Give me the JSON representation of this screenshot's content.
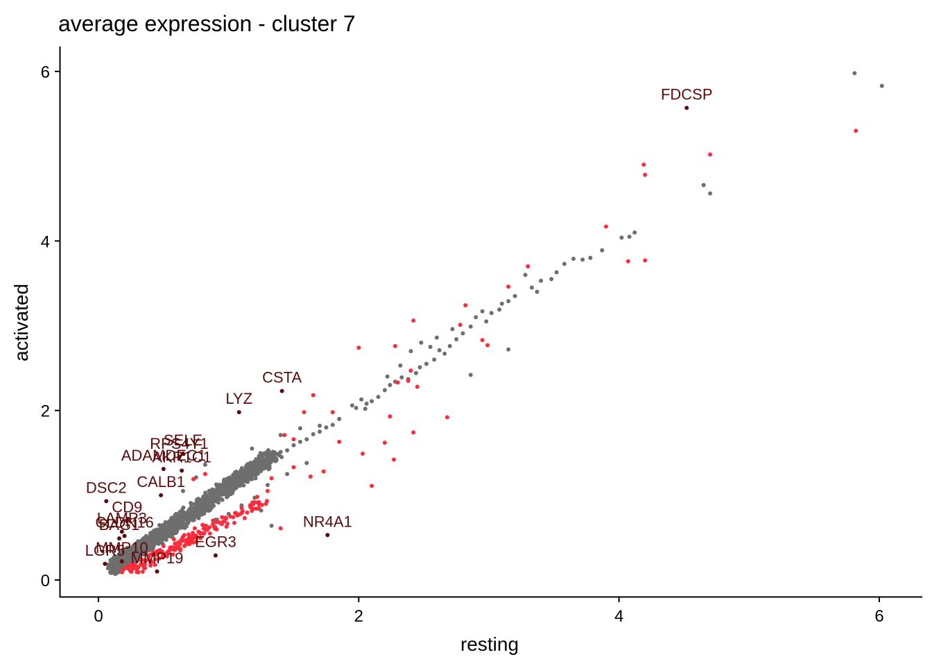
{
  "chart_data": {
    "type": "scatter",
    "title": "average expression - cluster 7",
    "xlabel": "resting",
    "ylabel": "activated",
    "xlim": [
      -0.3,
      6.3
    ],
    "ylim": [
      -0.2,
      6.3
    ],
    "x_ticks": [
      "0",
      "2",
      "4",
      "6"
    ],
    "y_ticks": [
      "0",
      "2",
      "4",
      "6"
    ],
    "grid": false,
    "legend": "none",
    "colors": {
      "background_genes": "#6e6e6e",
      "differential_genes": "#ff2a3a",
      "labeled_genes": "#5c0a0a"
    },
    "series": [
      {
        "points": [
          [
            5.81,
            5.98
          ],
          [
            6.02,
            5.83
          ],
          [
            4.65,
            4.66
          ],
          [
            4.7,
            4.56
          ],
          [
            4.12,
            4.1
          ],
          [
            4.08,
            4.05
          ],
          [
            4.02,
            4.04
          ],
          [
            3.87,
            3.89
          ],
          [
            3.78,
            3.8
          ],
          [
            3.72,
            3.78
          ],
          [
            3.65,
            3.79
          ],
          [
            3.58,
            3.73
          ],
          [
            3.52,
            3.63
          ],
          [
            3.48,
            3.55
          ],
          [
            3.4,
            3.53
          ],
          [
            3.37,
            3.4
          ],
          [
            3.33,
            3.45
          ],
          [
            3.28,
            3.6
          ],
          [
            3.2,
            3.35
          ],
          [
            3.15,
            3.29
          ],
          [
            3.1,
            3.26
          ],
          [
            3.08,
            3.19
          ],
          [
            3.02,
            3.15
          ],
          [
            2.98,
            3.05
          ],
          [
            2.95,
            3.17
          ],
          [
            2.9,
            3.1
          ],
          [
            2.86,
            2.99
          ],
          [
            2.8,
            2.91
          ],
          [
            2.75,
            2.84
          ],
          [
            2.7,
            2.76
          ],
          [
            2.66,
            2.67
          ],
          [
            2.62,
            2.71
          ],
          [
            2.58,
            2.6
          ],
          [
            2.52,
            2.55
          ],
          [
            2.47,
            2.51
          ],
          [
            2.44,
            2.44
          ],
          [
            2.38,
            2.37
          ],
          [
            2.33,
            2.39
          ],
          [
            2.28,
            2.34
          ],
          [
            2.24,
            2.3
          ],
          [
            2.2,
            2.24
          ],
          [
            2.15,
            2.16
          ],
          [
            2.1,
            2.11
          ],
          [
            2.06,
            2.08
          ],
          [
            2.02,
            2.13
          ],
          [
            1.98,
            2.03
          ],
          [
            1.95,
            2.06
          ],
          [
            2.05,
            2.02
          ],
          [
            2.48,
            2.8
          ],
          [
            2.6,
            2.86
          ],
          [
            2.72,
            2.96
          ],
          [
            2.86,
            2.42
          ],
          [
            3.15,
            2.72
          ],
          [
            2.55,
            2.75
          ],
          [
            2.4,
            2.7
          ],
          [
            2.32,
            2.53
          ],
          [
            2.22,
            2.4
          ],
          [
            1.85,
            1.9
          ],
          [
            1.8,
            1.83
          ],
          [
            1.75,
            1.8
          ],
          [
            1.7,
            1.75
          ],
          [
            1.65,
            1.72
          ],
          [
            1.6,
            1.66
          ],
          [
            1.55,
            1.63
          ],
          [
            1.5,
            1.59
          ],
          [
            1.45,
            1.53
          ],
          [
            1.4,
            1.51
          ],
          [
            1.35,
            1.46
          ],
          [
            1.3,
            1.42
          ],
          [
            1.25,
            1.38
          ],
          [
            1.2,
            1.33
          ],
          [
            1.15,
            1.28
          ],
          [
            1.1,
            1.24
          ],
          [
            1.05,
            1.18
          ],
          [
            1.0,
            1.13
          ],
          [
            0.95,
            1.09
          ],
          [
            0.9,
            1.04
          ],
          [
            0.85,
            0.98
          ],
          [
            0.8,
            0.93
          ],
          [
            0.75,
            0.88
          ],
          [
            0.7,
            0.83
          ],
          [
            0.65,
            0.78
          ],
          [
            0.6,
            0.73
          ],
          [
            0.55,
            0.68
          ],
          [
            0.5,
            0.62
          ],
          [
            0.45,
            0.57
          ],
          [
            0.4,
            0.52
          ],
          [
            0.35,
            0.47
          ],
          [
            0.3,
            0.42
          ],
          [
            0.25,
            0.36
          ],
          [
            0.2,
            0.3
          ],
          [
            0.16,
            0.23
          ],
          [
            0.14,
            0.17
          ],
          [
            1.6,
            1.38
          ],
          [
            1.45,
            1.25
          ],
          [
            1.3,
            1.12
          ],
          [
            1.2,
            0.97
          ],
          [
            1.1,
            0.88
          ],
          [
            1.0,
            0.78
          ],
          [
            0.9,
            0.71
          ],
          [
            1.33,
            0.64
          ],
          [
            0.82,
            1.36
          ],
          [
            1.18,
            1.55
          ],
          [
            1.4,
            1.71
          ],
          [
            1.55,
            1.79
          ],
          [
            1.7,
            1.82
          ],
          [
            0.75,
            1.21
          ],
          [
            0.65,
            1.05
          ],
          [
            1.25,
            0.82
          ]
        ]
      },
      {
        "points": [
          [
            5.82,
            5.3
          ],
          [
            4.7,
            5.02
          ],
          [
            4.19,
            4.9
          ],
          [
            4.2,
            4.78
          ],
          [
            3.9,
            4.17
          ],
          [
            4.07,
            3.76
          ],
          [
            4.2,
            3.77
          ],
          [
            3.3,
            3.7
          ],
          [
            3.15,
            3.46
          ],
          [
            2.82,
            3.24
          ],
          [
            2.78,
            3.01
          ],
          [
            2.42,
            3.06
          ],
          [
            2.95,
            2.83
          ],
          [
            2.99,
            2.77
          ],
          [
            2.28,
            2.76
          ],
          [
            2.0,
            2.74
          ],
          [
            2.4,
            2.47
          ],
          [
            2.38,
            2.35
          ],
          [
            2.3,
            2.33
          ],
          [
            2.45,
            2.28
          ],
          [
            2.68,
            1.92
          ],
          [
            2.24,
            1.93
          ],
          [
            1.8,
            1.98
          ],
          [
            1.65,
            2.18
          ],
          [
            1.58,
            1.98
          ],
          [
            1.43,
            1.71
          ],
          [
            1.5,
            1.66
          ],
          [
            1.85,
            1.63
          ],
          [
            2.42,
            1.74
          ],
          [
            2.2,
            1.62
          ],
          [
            2.03,
            1.49
          ],
          [
            2.27,
            1.42
          ],
          [
            2.1,
            1.11
          ],
          [
            1.73,
            1.28
          ],
          [
            1.63,
            1.22
          ],
          [
            1.5,
            1.33
          ],
          [
            1.33,
            1.2
          ],
          [
            1.3,
            1.05
          ],
          [
            1.22,
            0.98
          ],
          [
            1.1,
            0.85
          ],
          [
            1.05,
            0.79
          ],
          [
            0.95,
            0.74
          ],
          [
            0.88,
            0.7
          ],
          [
            0.8,
            0.65
          ],
          [
            0.74,
            0.61
          ],
          [
            0.66,
            0.53
          ],
          [
            0.58,
            0.48
          ],
          [
            0.5,
            0.4
          ],
          [
            0.45,
            0.34
          ],
          [
            0.4,
            0.3
          ],
          [
            0.33,
            0.24
          ],
          [
            0.27,
            0.19
          ],
          [
            0.22,
            0.15
          ],
          [
            1.4,
            0.61
          ],
          [
            0.82,
            1.25
          ],
          [
            0.73,
            1.19
          ]
        ]
      },
      {
        "points": [
          [
            4.52,
            5.57
          ],
          [
            1.41,
            2.23
          ],
          [
            1.08,
            1.98
          ],
          [
            0.65,
            1.49
          ],
          [
            0.62,
            1.45
          ],
          [
            0.5,
            1.31
          ],
          [
            0.64,
            1.29
          ],
          [
            0.48,
            1.0
          ],
          [
            0.06,
            0.93
          ],
          [
            0.22,
            0.7
          ],
          [
            0.18,
            0.57
          ],
          [
            0.2,
            0.52
          ],
          [
            0.16,
            0.49
          ],
          [
            0.05,
            0.19
          ],
          [
            0.18,
            0.22
          ],
          [
            0.45,
            0.1
          ],
          [
            0.9,
            0.29
          ],
          [
            1.76,
            0.53
          ]
        ],
        "labels": [
          "FDCSP",
          "CSTA",
          "LYZ",
          "SELE",
          "RPS4Y1",
          "ADAMDEC1",
          "AKR1C1",
          "CALB1",
          "DSC2",
          "CD9",
          "LAMP3",
          "CLDN16",
          "BAG1",
          "LGR5",
          "MMP10",
          "MMP19",
          "EGR3",
          "NR4A1"
        ]
      }
    ]
  }
}
